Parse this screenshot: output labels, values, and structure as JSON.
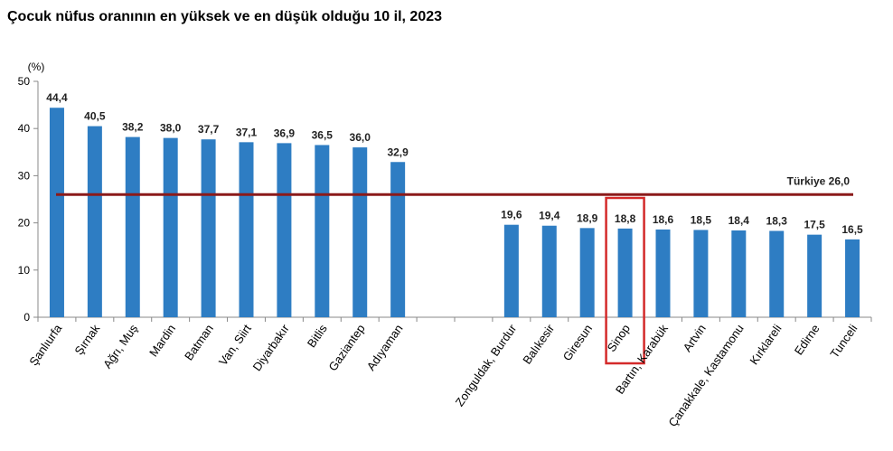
{
  "chart_data": {
    "type": "bar",
    "title": "Çocuk nüfus oranının en yüksek ve en düşük olduğu 10 il, 2023",
    "ylabel": "(%)",
    "ylim": [
      0,
      50
    ],
    "yticks": [
      0,
      10,
      20,
      30,
      40,
      50
    ],
    "categories": [
      "Şanlıurfa",
      "Şırnak",
      "Ağrı, Muş",
      "Mardin",
      "Batman",
      "Van, Siirt",
      "Diyarbakır",
      "Bitlis",
      "Gaziantep",
      "Adıyaman",
      "",
      "",
      "Zonguldak, Burdur",
      "Balıkesir",
      "Giresun",
      "Sinop",
      "Bartın, Karabük",
      "Artvin",
      "Çanakkale, Kastamonu",
      "Kırklareli",
      "Edirne",
      "Tunceli"
    ],
    "values": [
      44.4,
      40.5,
      38.2,
      38.0,
      37.7,
      37.1,
      36.9,
      36.5,
      36.0,
      32.9,
      null,
      null,
      19.6,
      19.4,
      18.9,
      18.8,
      18.6,
      18.5,
      18.4,
      18.3,
      17.5,
      16.5
    ],
    "value_labels": [
      "44,4",
      "40,5",
      "38,2",
      "38,0",
      "37,7",
      "37,1",
      "36,9",
      "36,5",
      "36,0",
      "32,9",
      "",
      "",
      "19,6",
      "19,4",
      "18,9",
      "18,8",
      "18,6",
      "18,5",
      "18,4",
      "18,3",
      "17,5",
      "16,5"
    ],
    "reference_line": {
      "value": 26.0,
      "label": "Türkiye 26,0"
    },
    "highlighted_category": "Sinop",
    "grid": false,
    "colors": {
      "bar": "#2E7DC3",
      "reference": "#8B1A1A",
      "highlight": "#D42A2A",
      "axis": "#888888"
    }
  }
}
